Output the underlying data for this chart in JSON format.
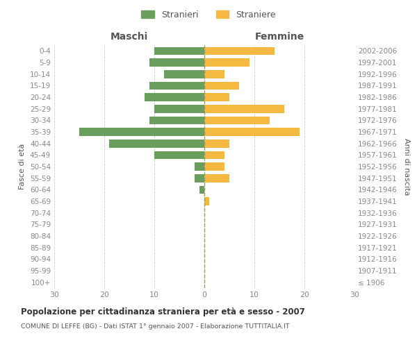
{
  "age_groups": [
    "100+",
    "95-99",
    "90-94",
    "85-89",
    "80-84",
    "75-79",
    "70-74",
    "65-69",
    "60-64",
    "55-59",
    "50-54",
    "45-49",
    "40-44",
    "35-39",
    "30-34",
    "25-29",
    "20-24",
    "15-19",
    "10-14",
    "5-9",
    "0-4"
  ],
  "birth_years": [
    "≤ 1906",
    "1907-1911",
    "1912-1916",
    "1917-1921",
    "1922-1926",
    "1927-1931",
    "1932-1936",
    "1937-1941",
    "1942-1946",
    "1947-1951",
    "1952-1956",
    "1957-1961",
    "1962-1966",
    "1967-1971",
    "1972-1976",
    "1977-1981",
    "1982-1986",
    "1987-1991",
    "1992-1996",
    "1997-2001",
    "2002-2006"
  ],
  "maschi": [
    0,
    0,
    0,
    0,
    0,
    0,
    0,
    0,
    1,
    2,
    2,
    10,
    19,
    25,
    11,
    10,
    12,
    11,
    8,
    11,
    10
  ],
  "femmine": [
    0,
    0,
    0,
    0,
    0,
    0,
    0,
    1,
    0,
    5,
    4,
    4,
    5,
    19,
    13,
    16,
    5,
    7,
    4,
    9,
    14
  ],
  "color_maschi": "#6a9e5f",
  "color_femmine": "#f5b942",
  "xlabel_left": "Maschi",
  "xlabel_right": "Femmine",
  "ylabel_left": "Fasce di età",
  "ylabel_right": "Anni di nascita",
  "xlim": 30,
  "title": "Popolazione per cittadinanza straniera per età e sesso - 2007",
  "subtitle": "COMUNE DI LEFFE (BG) - Dati ISTAT 1° gennaio 2007 - Elaborazione TUTTITALIA.IT",
  "legend_stranieri": "Stranieri",
  "legend_straniere": "Straniere",
  "bg_color": "#ffffff",
  "grid_color": "#cccccc",
  "tick_color": "#888888",
  "text_color": "#555555"
}
